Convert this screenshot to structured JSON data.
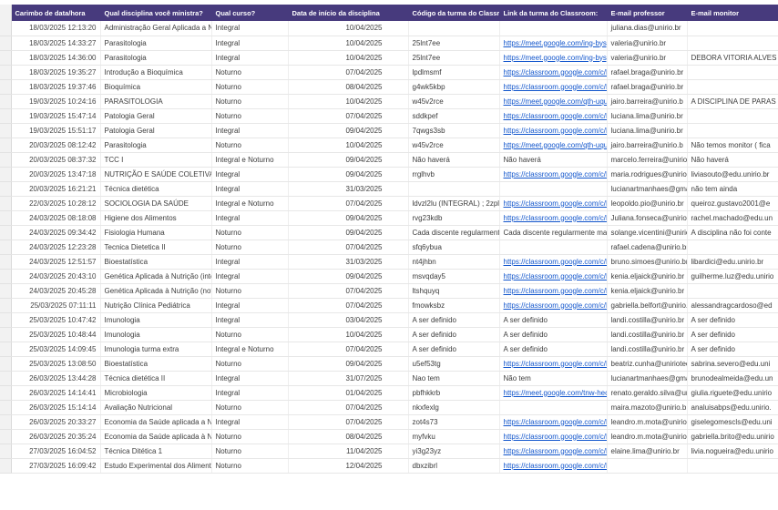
{
  "sheet": {
    "colors": {
      "header_bg": "#473a7d",
      "link": "#1155cc"
    }
  },
  "table": {
    "columns": [
      {
        "label": "Carimbo de data/hora"
      },
      {
        "label": "Qual disciplina você ministra?"
      },
      {
        "label": "Qual curso?"
      },
      {
        "label": "Data de início da disciplina"
      },
      {
        "label": "Código da turma do Classroom:"
      },
      {
        "label": "Link da turma do Classroom:"
      },
      {
        "label": "E-mail professor"
      },
      {
        "label": "E-mail monitor"
      }
    ],
    "rows": [
      {
        "timestamp": "18/03/2025 12:13:20",
        "disciplina": "Administração Geral Aplicada a Nutri",
        "curso": "Integral",
        "inicio": "10/04/2025",
        "codigo": "",
        "link": "",
        "professor": "juliana.dias@unirio.br",
        "monitor": ""
      },
      {
        "timestamp": "18/03/2025 14:33:27",
        "disciplina": "Parasitologia",
        "curso": "Integral",
        "inicio": "10/04/2025",
        "codigo": "25lnt7ee",
        "link": "https://meet.google.com/ing-bysp-",
        "professor": "valeria@unirio.br",
        "monitor": ""
      },
      {
        "timestamp": "18/03/2025 14:36:00",
        "disciplina": "Parasitologia",
        "curso": "Integral",
        "inicio": "10/04/2025",
        "codigo": "25lnt7ee",
        "link": "https://meet.google.com/ing-bysp-",
        "professor": "valeria@unirio.br",
        "monitor": "DEBORA VITORIA ALVES"
      },
      {
        "timestamp": "18/03/2025 19:35:27",
        "disciplina": "Introdução a Bioquímica",
        "curso": "Noturno",
        "inicio": "07/04/2025",
        "codigo": "lpdlmsmf",
        "link": "https://classroom.google.com/c/N",
        "professor": "rafael.braga@unirio.br",
        "monitor": ""
      },
      {
        "timestamp": "18/03/2025 19:37:46",
        "disciplina": "Bioquímica",
        "curso": "Noturno",
        "inicio": "08/04/2025",
        "codigo": "g4wk5kbp",
        "link": "https://classroom.google.com/c/N",
        "professor": "rafael.braga@unirio.br",
        "monitor": ""
      },
      {
        "timestamp": "19/03/2025 10:24:16",
        "disciplina": "PARASITOLOGIA",
        "curso": "Noturno",
        "inicio": "10/04/2025",
        "codigo": "w45v2rce",
        "link": "https://meet.google.com/qth-uqun",
        "professor": "jairo.barreira@unirio.b",
        "monitor": "A DISCIPLINA DE PARAS"
      },
      {
        "timestamp": "19/03/2025 15:47:14",
        "disciplina": "Patologia Geral",
        "curso": "Noturno",
        "inicio": "07/04/2025",
        "codigo": "sddkpef",
        "link": "https://classroom.google.com/c/N",
        "professor": "luciana.lima@unirio.br",
        "monitor": ""
      },
      {
        "timestamp": "19/03/2025 15:51:17",
        "disciplina": "Patologia Geral",
        "curso": "Integral",
        "inicio": "09/04/2025",
        "codigo": "7qwgs3sb",
        "link": "https://classroom.google.com/c/N",
        "professor": "luciana.lima@unirio.br",
        "monitor": ""
      },
      {
        "timestamp": "20/03/2025 08:12:42",
        "disciplina": "Parasitologia",
        "curso": "Noturno",
        "inicio": "10/04/2025",
        "codigo": "w45v2rce",
        "link": "https://meet.google.com/qth-uqun",
        "professor": "jairo.barreira@unirio.b",
        "monitor": "Não temos monitor ( fica"
      },
      {
        "timestamp": "20/03/2025 08:37:32",
        "disciplina": "TCC I",
        "curso": "Integral e Noturno",
        "inicio": "09/04/2025",
        "codigo": "Não haverá",
        "link": "Não haverá",
        "professor": "marcelo.ferreira@unirio.b",
        "monitor": "Não haverá"
      },
      {
        "timestamp": "20/03/2025 13:47:18",
        "disciplina": "NUTRIÇÃO E SAÚDE COLETIVA",
        "curso": "Integral",
        "inicio": "09/04/2025",
        "codigo": "rrglhvb",
        "link": "https://classroom.google.com/c/N",
        "professor": "maria.rodrigues@unirio.b",
        "monitor": "liviasouto@edu.unirio.br"
      },
      {
        "timestamp": "20/03/2025 16:21:21",
        "disciplina": "Técnica dietética",
        "curso": "Integral",
        "inicio": "31/03/2025",
        "codigo": "",
        "link": "",
        "professor": "lucianartmanhaes@gma",
        "monitor": "não tem ainda"
      },
      {
        "timestamp": "22/03/2025 10:28:12",
        "disciplina": "SOCIOLOGIA DA SAÚDE",
        "curso": "Integral e Noturno",
        "inicio": "07/04/2025",
        "codigo": "ldvzl2lu (INTEGRAL) ; 2zplrv6s (NOTUR",
        "link": "https://classroom.google.com/c/N",
        "professor": "leopoldo.pio@unirio.br",
        "monitor": "queiroz.gustavo2001@e"
      },
      {
        "timestamp": "24/03/2025 08:18:08",
        "disciplina": "Higiene dos Alimentos",
        "curso": "Integral",
        "inicio": "09/04/2025",
        "codigo": "rvg23kdb",
        "link": "https://classroom.google.com/c/N",
        "professor": "Juliana.fonseca@unirio.b",
        "monitor": "rachel.machado@edu.un"
      },
      {
        "timestamp": "24/03/2025 09:34:42",
        "disciplina": "Fisiologia Humana",
        "curso": "Noturno",
        "inicio": "09/04/2025",
        "codigo": "Cada discente regularmente matricula",
        "link": "Cada discente regularmente matric",
        "professor": "solange.vicentini@unirio",
        "monitor": "A disciplina não foi conte"
      },
      {
        "timestamp": "24/03/2025 12:23:28",
        "disciplina": "Tecnica Dietetica II",
        "curso": "Noturno",
        "inicio": "07/04/2025",
        "codigo": "sfq6ybua",
        "link": "",
        "professor": "rafael.cadena@unirio.br",
        "monitor": ""
      },
      {
        "timestamp": "24/03/2025 12:51:57",
        "disciplina": "Bioestatística",
        "curso": "Integral",
        "inicio": "31/03/2025",
        "codigo": "nt4jhbn",
        "link": "https://classroom.google.com/c/N",
        "professor": "bruno.simoes@unirio.br",
        "monitor": "libardici@edu.unirio.br"
      },
      {
        "timestamp": "24/03/2025 20:43:10",
        "disciplina": "Genética Aplicada à Nutrição (integ",
        "curso": "Integral",
        "inicio": "09/04/2025",
        "codigo": "msvqday5",
        "link": "https://classroom.google.com/c/N",
        "professor": "kenia.eljaick@unirio.br",
        "monitor": "guilherme.luz@edu.unirio"
      },
      {
        "timestamp": "24/03/2025 20:45:28",
        "disciplina": "Genética Aplicada à Nutrição (notur",
        "curso": "Noturno",
        "inicio": "07/04/2025",
        "codigo": "ltshquyq",
        "link": "https://classroom.google.com/c/N",
        "professor": "kenia.eljaick@unirio.br",
        "monitor": ""
      },
      {
        "timestamp": "25/03/2025 07:11:11",
        "disciplina": "Nutrição Clínica Pediátrica",
        "curso": "Integral",
        "inicio": "07/04/2025",
        "codigo": "fmowksbz",
        "link": "https://classroom.google.com/c/N",
        "professor": "gabriella.belfort@unirio.b",
        "monitor": "alessandragcardoso@ed"
      },
      {
        "timestamp": "25/03/2025 10:47:42",
        "disciplina": "Imunologia",
        "curso": "Integral",
        "inicio": "03/04/2025",
        "codigo": "A ser definido",
        "link": "A ser definido",
        "professor": "landi.costilla@unirio.br",
        "monitor": "A ser definido"
      },
      {
        "timestamp": "25/03/2025 10:48:44",
        "disciplina": "Imunologia",
        "curso": "Noturno",
        "inicio": "10/04/2025",
        "codigo": "A ser definido",
        "link": "A ser definido",
        "professor": "landi.costilla@unirio.br",
        "monitor": "A ser definido"
      },
      {
        "timestamp": "25/03/2025 14:09:45",
        "disciplina": "Imunologia  turma extra",
        "curso": "Integral e Noturno",
        "inicio": "07/04/2025",
        "codigo": "A ser definido",
        "link": "A ser definido",
        "professor": "landi.costilla@unirio.br",
        "monitor": "A ser definido"
      },
      {
        "timestamp": "25/03/2025 13:08:50",
        "disciplina": "Bioestatística",
        "curso": "Noturno",
        "inicio": "09/04/2025",
        "codigo": "u5ef53tg",
        "link": "https://classroom.google.com/c/N",
        "professor": "beatriz.cunha@uniriotec.",
        "monitor": "sabrina.severo@edu.uni"
      },
      {
        "timestamp": "26/03/2025 13:44:28",
        "disciplina": "Técnica dietética II",
        "curso": "Integral",
        "inicio": "31/07/2025",
        "codigo": "Nao tem",
        "link": "Não tem",
        "professor": "lucianartmanhaes@gma",
        "monitor": "brunodealmeida@edu.un"
      },
      {
        "timestamp": "26/03/2025 14:14:41",
        "disciplina": "Microbiologia",
        "curso": "Integral",
        "inicio": "01/04/2025",
        "codigo": "pbfhkkrb",
        "link": "https://meet.google.com/tnw-hecn",
        "professor": "renato.geraldo.silva@uni",
        "monitor": "giulia.riguete@edu.unirio"
      },
      {
        "timestamp": "26/03/2025 15:14:14",
        "disciplina": "Avaliação Nutricional",
        "curso": "Noturno",
        "inicio": "07/04/2025",
        "codigo": "nkxfexlg",
        "link": "",
        "professor": "maira.mazoto@unirio.b",
        "monitor": "analuisabps@edu.unirio."
      },
      {
        "timestamp": "26/03/2025 20:33:27",
        "disciplina": "Economia da Saúde aplicada a Nutr",
        "curso": "Integral",
        "inicio": "07/04/2025",
        "codigo": "zot4s73",
        "link": "https://classroom.google.com/c/N",
        "professor": "leandro.m.mota@unirio.b",
        "monitor": "giselegomescls@edu.uni"
      },
      {
        "timestamp": "26/03/2025 20:35:24",
        "disciplina": "Economia da Saúde aplicada à Nutr",
        "curso": "Noturno",
        "inicio": "08/04/2025",
        "codigo": "myfvku",
        "link": "https://classroom.google.com/c/N",
        "professor": "leandro.m.mota@unirio.b",
        "monitor": "gabriella.brito@edu.unirio"
      },
      {
        "timestamp": "27/03/2025 16:04:52",
        "disciplina": "Técnica Ditética 1",
        "curso": "Noturno",
        "inicio": "11/04/2025",
        "codigo": "yi3g23yz",
        "link": "https://classroom.google.com/c/N",
        "professor": "elaine.lima@unirio.br",
        "monitor": "livia.nogueira@edu.unirio"
      },
      {
        "timestamp": "27/03/2025 16:09:42",
        "disciplina": "Estudo Experimental dos Alimentos",
        "curso": "Noturno",
        "inicio": "12/04/2025",
        "codigo": "dbxzibrl",
        "link": "https://classroom.google.com/c/N",
        "professor": "",
        "monitor": ""
      }
    ]
  }
}
